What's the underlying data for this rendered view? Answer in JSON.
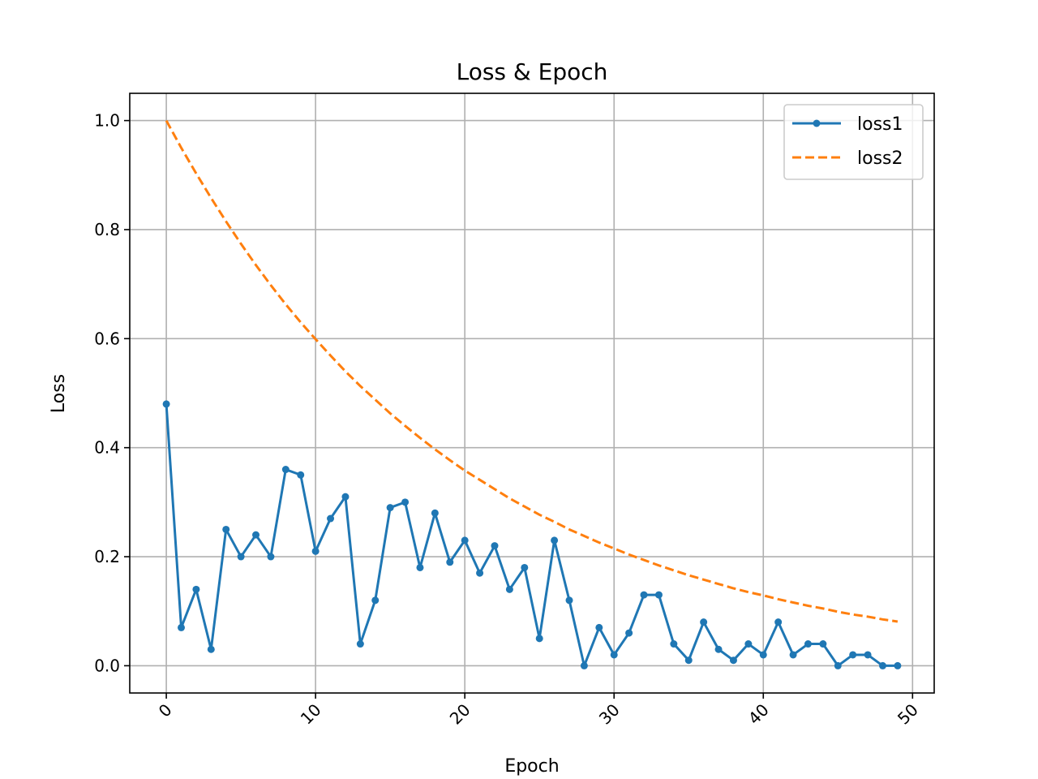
{
  "chart_data": {
    "type": "line",
    "title": "Loss & Epoch",
    "xlabel": "Epoch",
    "ylabel": "Loss",
    "xlim": [
      -2.45,
      51.45
    ],
    "ylim": [
      -0.05,
      1.05
    ],
    "xticks": [
      0,
      10,
      20,
      30,
      40,
      50
    ],
    "yticks": [
      0.0,
      0.2,
      0.4,
      0.6,
      0.8,
      1.0
    ],
    "ytick_labels": [
      "0.0",
      "0.2",
      "0.4",
      "0.6",
      "0.8",
      "1.0"
    ],
    "xtick_rotation": 45,
    "grid": true,
    "legend_position": "top-right",
    "series": [
      {
        "name": "loss1",
        "color": "#1f77b4",
        "style": "solid",
        "marker": "circle",
        "x": [
          0,
          1,
          2,
          3,
          4,
          5,
          6,
          7,
          8,
          9,
          10,
          11,
          12,
          13,
          14,
          15,
          16,
          17,
          18,
          19,
          20,
          21,
          22,
          23,
          24,
          25,
          26,
          27,
          28,
          29,
          30,
          31,
          32,
          33,
          34,
          35,
          36,
          37,
          38,
          39,
          40,
          41,
          42,
          43,
          44,
          45,
          46,
          47,
          48,
          49
        ],
        "values": [
          0.48,
          0.07,
          0.14,
          0.03,
          0.25,
          0.2,
          0.24,
          0.2,
          0.36,
          0.35,
          0.21,
          0.27,
          0.31,
          0.04,
          0.12,
          0.29,
          0.3,
          0.18,
          0.28,
          0.19,
          0.23,
          0.17,
          0.22,
          0.14,
          0.18,
          0.05,
          0.23,
          0.12,
          0.0,
          0.07,
          0.02,
          0.06,
          0.13,
          0.13,
          0.04,
          0.01,
          0.08,
          0.03,
          0.01,
          0.04,
          0.02,
          0.08,
          0.02,
          0.04,
          0.04,
          0.0,
          0.02,
          0.02,
          0.0,
          0.0
        ]
      },
      {
        "name": "loss2",
        "color": "#ff7f0e",
        "style": "dashed",
        "marker": "none",
        "x": [
          0,
          1,
          2,
          3,
          4,
          5,
          6,
          7,
          8,
          9,
          10,
          11,
          12,
          13,
          14,
          15,
          16,
          17,
          18,
          19,
          20,
          21,
          22,
          23,
          24,
          25,
          26,
          27,
          28,
          29,
          30,
          31,
          32,
          33,
          34,
          35,
          36,
          37,
          38,
          39,
          40,
          41,
          42,
          43,
          44,
          45,
          46,
          47,
          48,
          49
        ],
        "values": [
          1.0,
          0.95,
          0.903,
          0.858,
          0.815,
          0.774,
          0.735,
          0.698,
          0.663,
          0.63,
          0.599,
          0.569,
          0.54,
          0.513,
          0.488,
          0.463,
          0.44,
          0.418,
          0.397,
          0.377,
          0.358,
          0.341,
          0.324,
          0.307,
          0.292,
          0.277,
          0.264,
          0.25,
          0.238,
          0.226,
          0.215,
          0.204,
          0.194,
          0.184,
          0.175,
          0.166,
          0.158,
          0.15,
          0.142,
          0.135,
          0.129,
          0.122,
          0.116,
          0.11,
          0.105,
          0.099,
          0.094,
          0.09,
          0.085,
          0.081
        ]
      }
    ]
  }
}
